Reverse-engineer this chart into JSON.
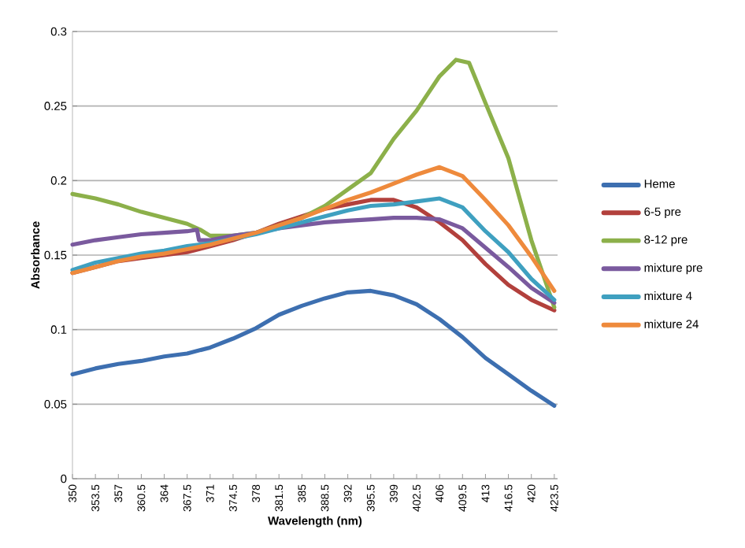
{
  "chart_data": {
    "type": "line",
    "xlabel": "Wavelength (nm)",
    "ylabel": "Absorbance",
    "xlim": [
      350,
      424
    ],
    "xticks": [
      350,
      353.5,
      357,
      360.5,
      364,
      367.5,
      371,
      374.5,
      378,
      381.5,
      385,
      388.5,
      392,
      395.5,
      399,
      402.5,
      406,
      409.5,
      413,
      416.5,
      420,
      423.5
    ],
    "ylim": [
      0,
      0.3
    ],
    "yticks": [
      0,
      0.05,
      0.1,
      0.15,
      0.2,
      0.25,
      0.3
    ],
    "grid": "y",
    "legend": "right",
    "marker": "none",
    "line_style": "solid",
    "series": [
      {
        "name": "Heme",
        "color": "#3d6fb0",
        "x": [
          350,
          353.5,
          357,
          360.5,
          364,
          367.5,
          371,
          374.5,
          378,
          381.5,
          385,
          388.5,
          392,
          395.5,
          399,
          402.5,
          406,
          409.5,
          413,
          416.5,
          420,
          423.5
        ],
        "values": [
          0.07,
          0.074,
          0.077,
          0.079,
          0.082,
          0.084,
          0.088,
          0.094,
          0.101,
          0.11,
          0.116,
          0.121,
          0.125,
          0.126,
          0.123,
          0.117,
          0.107,
          0.095,
          0.081,
          0.07,
          0.059,
          0.049
        ]
      },
      {
        "name": "6-5 pre",
        "color": "#b2403c",
        "x": [
          350,
          353.5,
          357,
          360.5,
          364,
          367.5,
          371,
          374.5,
          378,
          381.5,
          385,
          388.5,
          392,
          395.5,
          399,
          402.5,
          406,
          409.5,
          413,
          416.5,
          420,
          423.5
        ],
        "values": [
          0.138,
          0.142,
          0.146,
          0.148,
          0.15,
          0.152,
          0.156,
          0.16,
          0.165,
          0.171,
          0.176,
          0.181,
          0.184,
          0.187,
          0.187,
          0.182,
          0.172,
          0.16,
          0.144,
          0.13,
          0.12,
          0.113
        ]
      },
      {
        "name": "8-12 pre",
        "color": "#8cb04a",
        "x": [
          350,
          353.5,
          357,
          360.5,
          364,
          367.5,
          369.5,
          371,
          374.5,
          378,
          381.5,
          385,
          388.5,
          392,
          395.5,
          399,
          402.5,
          406,
          408.5,
          410.5,
          413,
          416.5,
          420,
          423.5
        ],
        "values": [
          0.191,
          0.188,
          0.184,
          0.179,
          0.175,
          0.171,
          0.167,
          0.163,
          0.163,
          0.165,
          0.17,
          0.175,
          0.183,
          0.194,
          0.205,
          0.228,
          0.247,
          0.27,
          0.281,
          0.279,
          0.252,
          0.215,
          0.16,
          0.115
        ]
      },
      {
        "name": "mixture pre",
        "color": "#7a5a9e",
        "x": [
          350,
          353.5,
          357,
          360.5,
          364,
          367.5,
          369,
          369.3,
          371,
          374.5,
          378,
          381.5,
          385,
          388.5,
          392,
          395.5,
          399,
          402.5,
          406,
          409.5,
          413,
          416.5,
          420,
          423.5
        ],
        "values": [
          0.157,
          0.16,
          0.162,
          0.164,
          0.165,
          0.166,
          0.167,
          0.16,
          0.16,
          0.163,
          0.165,
          0.168,
          0.17,
          0.172,
          0.173,
          0.174,
          0.175,
          0.175,
          0.174,
          0.168,
          0.155,
          0.142,
          0.128,
          0.118
        ]
      },
      {
        "name": "mixture 4",
        "color": "#3fa0c0",
        "x": [
          350,
          353.5,
          357,
          360.5,
          364,
          367.5,
          371,
          374.5,
          378,
          381.5,
          385,
          388.5,
          392,
          395.5,
          399,
          402.5,
          406,
          409.5,
          413,
          416.5,
          420,
          423.5
        ],
        "values": [
          0.14,
          0.145,
          0.148,
          0.151,
          0.153,
          0.156,
          0.158,
          0.161,
          0.164,
          0.168,
          0.172,
          0.176,
          0.18,
          0.183,
          0.184,
          0.186,
          0.188,
          0.182,
          0.166,
          0.152,
          0.134,
          0.12
        ]
      },
      {
        "name": "mixture 24",
        "color": "#ee8a3c",
        "x": [
          350,
          353.5,
          357,
          360.5,
          364,
          367.5,
          371,
          374.5,
          378,
          381.5,
          385,
          388.5,
          392,
          395.5,
          399,
          402.5,
          406,
          409.5,
          413,
          416.5,
          420,
          423.5
        ],
        "values": [
          0.138,
          0.142,
          0.146,
          0.149,
          0.151,
          0.154,
          0.157,
          0.161,
          0.165,
          0.17,
          0.175,
          0.181,
          0.187,
          0.192,
          0.198,
          0.204,
          0.209,
          0.203,
          0.187,
          0.17,
          0.149,
          0.126
        ]
      }
    ]
  }
}
